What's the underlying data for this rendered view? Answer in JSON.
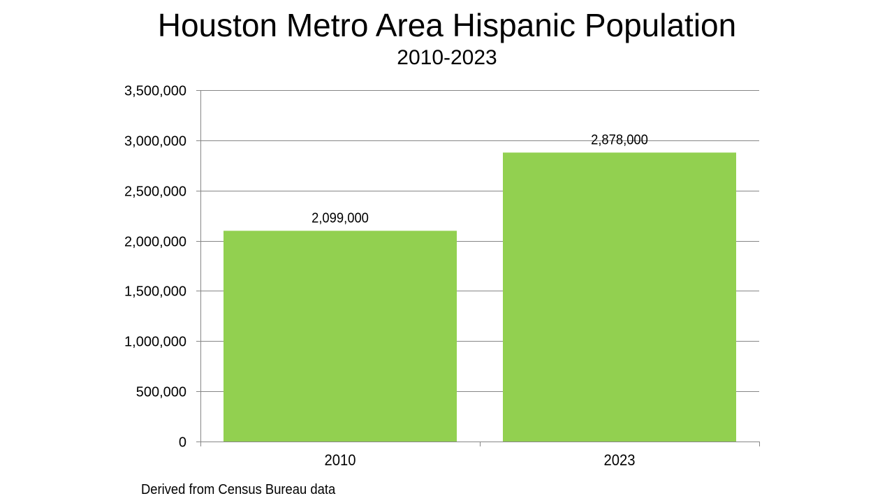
{
  "chart_data": {
    "type": "bar",
    "title": "Houston Metro Area Hispanic Population",
    "subtitle": "2010-2023",
    "categories": [
      "2010",
      "2023"
    ],
    "values": [
      2099000,
      2878000
    ],
    "data_labels": [
      "2,099,000",
      "2,878,000"
    ],
    "xlabel": "",
    "ylabel": "",
    "ylim": [
      0,
      3500000
    ],
    "yticks": [
      0,
      500000,
      1000000,
      1500000,
      2000000,
      2500000,
      3000000,
      3500000
    ],
    "ytick_labels": [
      "0",
      "500,000",
      "1,000,000",
      "1,500,000",
      "2,000,000",
      "2,500,000",
      "3,000,000",
      "3,500,000"
    ],
    "grid": true,
    "legend": "none",
    "bar_color": "#92d050",
    "grid_color": "#868686",
    "source_note": "Derived from Census Bureau data"
  }
}
